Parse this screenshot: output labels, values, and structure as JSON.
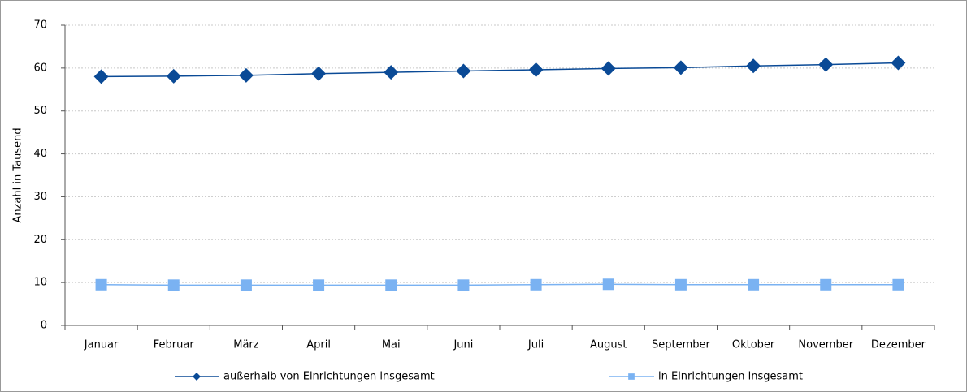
{
  "chart_data": {
    "type": "line",
    "y_label": "Anzahl in Tausend",
    "categories": [
      "Januar",
      "Februar",
      "März",
      "April",
      "Mai",
      "Juni",
      "Juli",
      "August",
      "September",
      "Oktober",
      "November",
      "Dezember"
    ],
    "series": [
      {
        "name": "außerhalb von Einrichtungen insgesamt",
        "color": "#0a4a96",
        "marker": "diamond",
        "values": [
          58.0,
          58.1,
          58.3,
          58.7,
          59.0,
          59.3,
          59.6,
          59.9,
          60.1,
          60.5,
          60.8,
          61.2
        ]
      },
      {
        "name": "in Einrichtungen insgesamt",
        "color": "#7ab2f2",
        "marker": "square",
        "values": [
          9.5,
          9.4,
          9.4,
          9.4,
          9.4,
          9.4,
          9.5,
          9.6,
          9.5,
          9.5,
          9.5,
          9.5
        ]
      }
    ],
    "ylim": [
      0,
      70
    ],
    "yticks": [
      0,
      10,
      20,
      30,
      40,
      50,
      60,
      70
    ],
    "grid": true
  }
}
